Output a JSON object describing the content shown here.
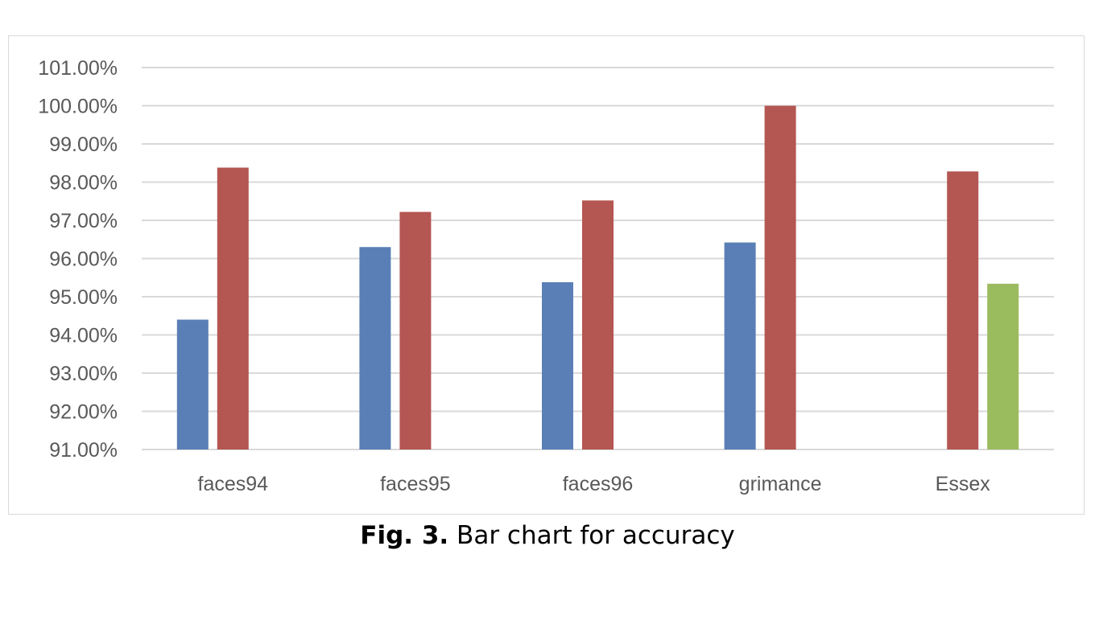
{
  "chart_data": {
    "type": "bar",
    "categories": [
      "faces94",
      "faces95",
      "faces96",
      "grimance",
      "Essex"
    ],
    "series": [
      {
        "values": [
          94.4,
          96.3,
          95.38,
          96.42,
          null
        ],
        "color": "#5a7fb6"
      },
      {
        "values": [
          98.38,
          97.22,
          97.52,
          100.0,
          98.28
        ],
        "color": "#b45652"
      },
      {
        "values": [
          null,
          null,
          null,
          null,
          95.34
        ],
        "color": "#9bbb5f"
      }
    ],
    "ylim": [
      91,
      101
    ],
    "yticks": [
      91,
      92,
      93,
      94,
      95,
      96,
      97,
      98,
      99,
      100,
      101
    ],
    "ytick_labels": [
      "91.00%",
      "92.00%",
      "93.00%",
      "94.00%",
      "95.00%",
      "96.00%",
      "97.00%",
      "98.00%",
      "99.00%",
      "100.00%",
      "101.00%"
    ],
    "grid": true,
    "legend": "none"
  },
  "caption": {
    "label": "Fig. 3.",
    "text": " Bar chart for accuracy"
  }
}
